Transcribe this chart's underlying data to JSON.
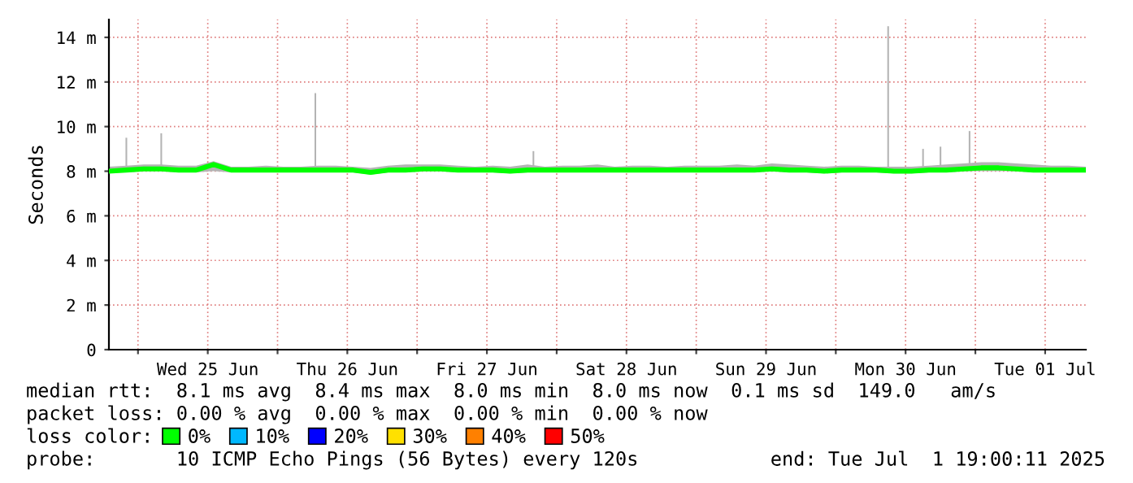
{
  "chart_data": {
    "type": "line",
    "ylabel": "Seconds",
    "legend_title": "loss color:",
    "legend": "bottom",
    "grid": true,
    "annotations": [
      "median rtt:  8.1 ms avg  8.4 ms max  8.0 ms min  8.0 ms now  0.1 ms sd  149.0   am/s",
      "packet loss: 0.00 % avg  0.00 % max  0.00 % min  0.00 % now",
      "probe:       10 ICMP Echo Pings (56 Bytes) every 120s",
      "end: Tue Jul  1 19:00:11 2025"
    ],
    "xlim": [
      "2025-06-24T19:00",
      "2025-07-01T19:00"
    ],
    "xticks": [
      {
        "value": "2025-06-25T00:00",
        "label": null
      },
      {
        "value": "2025-06-25T12:00",
        "label": "Wed 25 Jun"
      },
      {
        "value": "2025-06-26T00:00",
        "label": null
      },
      {
        "value": "2025-06-26T12:00",
        "label": "Thu 26 Jun"
      },
      {
        "value": "2025-06-27T00:00",
        "label": null
      },
      {
        "value": "2025-06-27T12:00",
        "label": "Fri 27 Jun"
      },
      {
        "value": "2025-06-28T00:00",
        "label": null
      },
      {
        "value": "2025-06-28T12:00",
        "label": "Sat 28 Jun"
      },
      {
        "value": "2025-06-29T00:00",
        "label": null
      },
      {
        "value": "2025-06-29T12:00",
        "label": "Sun 29 Jun"
      },
      {
        "value": "2025-06-30T00:00",
        "label": null
      },
      {
        "value": "2025-06-30T12:00",
        "label": "Mon 30 Jun"
      },
      {
        "value": "2025-07-01T00:00",
        "label": null
      },
      {
        "value": "2025-07-01T12:00",
        "label": "Tue 01 Jul"
      }
    ],
    "ylim": [
      0,
      14.8
    ],
    "yticks": [
      0,
      {
        "value": 2,
        "label": "2 m"
      },
      {
        "value": 4,
        "label": "4 m"
      },
      {
        "value": 6,
        "label": "6 m"
      },
      {
        "value": 8,
        "label": "8 m"
      },
      {
        "value": 10,
        "label": "10 m"
      },
      {
        "value": 12,
        "label": "12 m"
      },
      {
        "value": 14,
        "label": "14 m"
      }
    ],
    "series": [
      {
        "name": "0%",
        "color": "#00ff00",
        "x": [
          "2025-06-24T19:00",
          "2025-06-24T22:00",
          "2025-06-25T01:00",
          "2025-06-25T04:00",
          "2025-06-25T07:00",
          "2025-06-25T10:00",
          "2025-06-25T13:00",
          "2025-06-25T16:00",
          "2025-06-25T19:00",
          "2025-06-25T22:00",
          "2025-06-26T01:00",
          "2025-06-26T04:00",
          "2025-06-26T07:00",
          "2025-06-26T10:00",
          "2025-06-26T13:00",
          "2025-06-26T16:00",
          "2025-06-26T19:00",
          "2025-06-26T22:00",
          "2025-06-27T01:00",
          "2025-06-27T04:00",
          "2025-06-27T07:00",
          "2025-06-27T10:00",
          "2025-06-27T13:00",
          "2025-06-27T16:00",
          "2025-06-27T19:00",
          "2025-06-27T22:00",
          "2025-06-28T01:00",
          "2025-06-28T04:00",
          "2025-06-28T07:00",
          "2025-06-28T10:00",
          "2025-06-28T13:00",
          "2025-06-28T16:00",
          "2025-06-28T19:00",
          "2025-06-28T22:00",
          "2025-06-29T01:00",
          "2025-06-29T04:00",
          "2025-06-29T07:00",
          "2025-06-29T10:00",
          "2025-06-29T13:00",
          "2025-06-29T16:00",
          "2025-06-29T19:00",
          "2025-06-29T22:00",
          "2025-06-30T01:00",
          "2025-06-30T04:00",
          "2025-06-30T07:00",
          "2025-06-30T10:00",
          "2025-06-30T13:00",
          "2025-06-30T16:00",
          "2025-06-30T19:00",
          "2025-06-30T22:00",
          "2025-07-01T01:00",
          "2025-07-01T04:00",
          "2025-07-01T07:00",
          "2025-07-01T10:00",
          "2025-07-01T13:00",
          "2025-07-01T16:00",
          "2025-07-01T19:00"
        ],
        "values": [
          8.0,
          8.05,
          8.1,
          8.1,
          8.05,
          8.05,
          8.3,
          8.05,
          8.05,
          8.05,
          8.05,
          8.05,
          8.05,
          8.05,
          8.05,
          7.95,
          8.05,
          8.05,
          8.1,
          8.1,
          8.05,
          8.05,
          8.05,
          8.0,
          8.05,
          8.05,
          8.05,
          8.05,
          8.05,
          8.05,
          8.05,
          8.05,
          8.05,
          8.05,
          8.05,
          8.05,
          8.05,
          8.05,
          8.1,
          8.05,
          8.05,
          8.0,
          8.05,
          8.05,
          8.05,
          8.0,
          8.0,
          8.05,
          8.05,
          8.1,
          8.15,
          8.15,
          8.1,
          8.05,
          8.05,
          8.05,
          8.05
        ],
        "lower": [
          7.95,
          7.95,
          8.0,
          8.0,
          7.95,
          7.95,
          8.0,
          7.95,
          7.95,
          7.95,
          7.95,
          7.95,
          7.95,
          7.95,
          7.95,
          7.85,
          7.95,
          7.95,
          8.0,
          8.0,
          7.95,
          7.95,
          7.95,
          7.9,
          7.95,
          7.95,
          7.95,
          7.95,
          7.95,
          7.95,
          7.95,
          7.95,
          7.95,
          7.95,
          7.95,
          7.95,
          7.95,
          7.95,
          8.0,
          7.95,
          7.95,
          7.9,
          7.95,
          7.95,
          7.95,
          7.9,
          7.9,
          7.95,
          7.95,
          8.0,
          8.0,
          8.0,
          8.0,
          7.95,
          7.95,
          7.95,
          7.95
        ],
        "upper": [
          8.2,
          8.25,
          8.3,
          8.3,
          8.25,
          8.25,
          8.45,
          8.2,
          8.2,
          8.25,
          8.2,
          8.2,
          8.25,
          8.25,
          8.2,
          8.15,
          8.25,
          8.3,
          8.3,
          8.3,
          8.25,
          8.2,
          8.25,
          8.2,
          8.3,
          8.2,
          8.25,
          8.25,
          8.3,
          8.2,
          8.25,
          8.25,
          8.2,
          8.25,
          8.25,
          8.25,
          8.3,
          8.25,
          8.35,
          8.3,
          8.25,
          8.2,
          8.25,
          8.25,
          8.2,
          8.2,
          8.2,
          8.25,
          8.3,
          8.35,
          8.4,
          8.4,
          8.35,
          8.3,
          8.25,
          8.25,
          8.2
        ]
      },
      {
        "type": "bar",
        "color": "#b4b4b4",
        "x": [
          "2025-06-24T22:00",
          "2025-06-25T04:00",
          "2025-06-26T06:30",
          "2025-06-27T20:00",
          "2025-06-30T09:00",
          "2025-06-30T15:00",
          "2025-06-30T18:00",
          "2025-06-30T23:00"
        ],
        "base": [
          8.2,
          8.2,
          8.2,
          8.2,
          8.2,
          8.2,
          8.2,
          8.2
        ],
        "values": [
          1.3,
          1.5,
          3.3,
          0.7,
          6.3,
          0.8,
          0.9,
          1.6
        ]
      },
      {
        "name": "10%",
        "color": "#00b8ff"
      },
      {
        "name": "20%",
        "color": "#0000ff"
      },
      {
        "name": "30%",
        "color": "#ffe000"
      },
      {
        "name": "40%",
        "color": "#ff8000"
      },
      {
        "name": "50%",
        "color": "#ff0000"
      }
    ]
  }
}
